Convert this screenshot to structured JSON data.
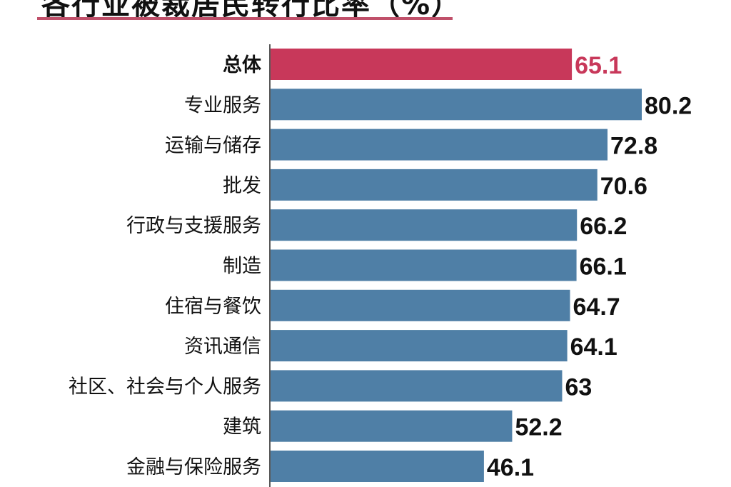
{
  "chart_data": {
    "type": "bar",
    "orientation": "horizontal",
    "title": "各行业被裁居民转行比率（%）",
    "xlabel": "",
    "ylabel": "",
    "xlim": [
      0,
      80.2
    ],
    "grid": false,
    "categories": [
      "总体",
      "专业服务",
      "运输与储存",
      "批发",
      "行政与支援服务",
      "制造",
      "住宿与餐饮",
      "资讯通信",
      "社区、社会与个人服务",
      "建筑",
      "金融与保险服务"
    ],
    "values": [
      65.1,
      80.2,
      72.8,
      70.6,
      66.2,
      66.1,
      64.7,
      64.1,
      63,
      52.2,
      46.1
    ],
    "value_labels": [
      "65.1",
      "80.2",
      "72.8",
      "70.6",
      "66.2",
      "66.1",
      "64.7",
      "64.1",
      "63",
      "52.2",
      "46.1"
    ],
    "highlight_index": 0,
    "colors": {
      "highlight": "#c8385a",
      "bar": "#4f7fa6",
      "text": "#111111"
    }
  }
}
